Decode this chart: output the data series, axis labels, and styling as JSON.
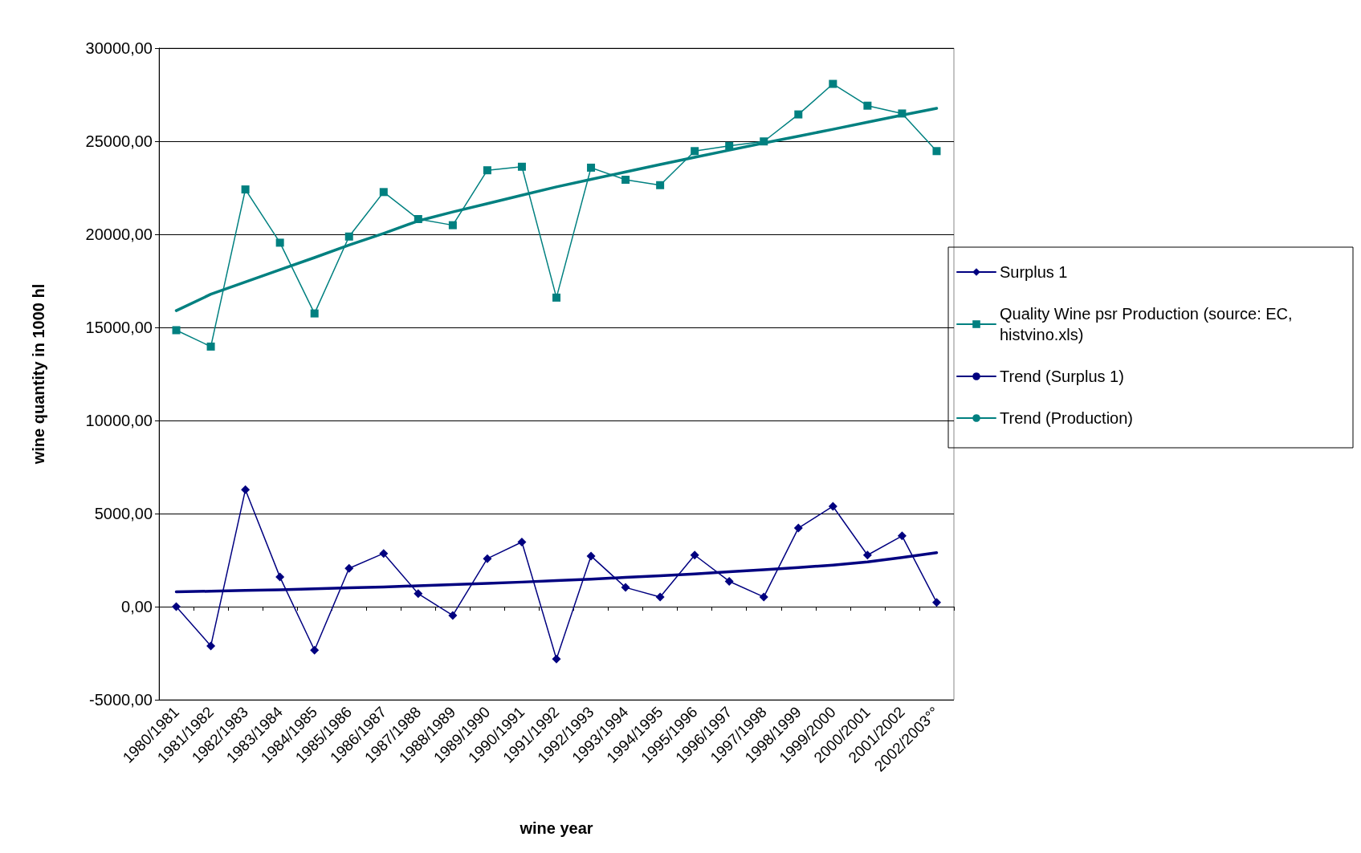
{
  "chart_data": {
    "type": "line",
    "xlabel": "wine year",
    "ylabel": "wine quantity in 1000 hl",
    "categories": [
      "1980/1981",
      "1981/1982",
      "1982/1983",
      "1983/1984",
      "1984/1985",
      "1985/1986",
      "1986/1987",
      "1987/1988",
      "1988/1989",
      "1989/1990",
      "1990/1991",
      "1991/1992",
      "1992/1993",
      "1993/1994",
      "1994/1995",
      "1995/1996",
      "1996/1997",
      "1997/1998",
      "1998/1999",
      "1999/2000",
      "2000/2001",
      "2001/2002",
      "2002/2003°°"
    ],
    "series": [
      {
        "name": "Surplus 1",
        "color": "#000080",
        "marker": "diamond",
        "values": [
          0,
          -2110,
          6280,
          1590,
          -2340,
          2060,
          2860,
          700,
          -470,
          2580,
          3470,
          -2810,
          2720,
          1030,
          520,
          2770,
          1360,
          520,
          4220,
          5390,
          2770,
          3800,
          230
        ]
      },
      {
        "name": "Quality Wine psr Production (source: EC, histvino.xls)",
        "color": "#008080",
        "marker": "square",
        "values": [
          14850,
          13970,
          22410,
          19550,
          15750,
          19880,
          22270,
          20820,
          20490,
          23440,
          23630,
          16600,
          23580,
          22930,
          22640,
          24470,
          24750,
          24990,
          26440,
          28080,
          26910,
          26490,
          24470
        ]
      },
      {
        "name": "Trend (Surplus 1)",
        "color": "#000080",
        "marker": "none",
        "values": [
          800,
          830,
          870,
          910,
          960,
          1010,
          1060,
          1120,
          1180,
          1250,
          1320,
          1400,
          1480,
          1570,
          1660,
          1760,
          1870,
          1980,
          2100,
          2230,
          2400,
          2640,
          2900
        ]
      },
      {
        "name": "Trend (Production)",
        "color": "#008080",
        "marker": "none",
        "values": [
          15900,
          16780,
          17440,
          18100,
          18750,
          19420,
          20050,
          20720,
          21200,
          21650,
          22100,
          22550,
          22950,
          23350,
          23750,
          24140,
          24520,
          24900,
          25270,
          25640,
          26020,
          26400,
          26770
        ]
      }
    ],
    "ylim": [
      -5000,
      30000
    ],
    "yticks": [
      {
        "value": -5000,
        "label": "-5000,00"
      },
      {
        "value": 0,
        "label": "0,00"
      },
      {
        "value": 5000,
        "label": "5000,00"
      },
      {
        "value": 10000,
        "label": "10000,00"
      },
      {
        "value": 15000,
        "label": "15000,00"
      },
      {
        "value": 20000,
        "label": "20000,00"
      },
      {
        "value": 25000,
        "label": "25000,00"
      },
      {
        "value": 30000,
        "label": "30000,00"
      }
    ],
    "grid": "y",
    "legend": "right"
  }
}
